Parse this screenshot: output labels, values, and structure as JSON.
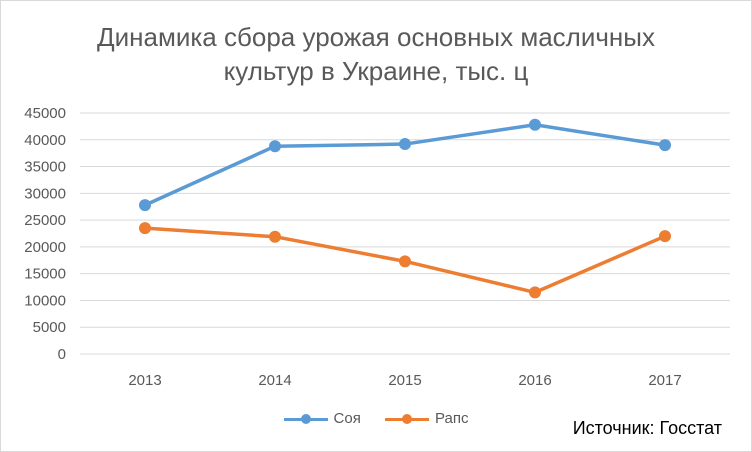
{
  "title_lines": [
    "Динамика сбора урожая основных масличных",
    "культур в Украине, тыс. ц"
  ],
  "source": "Источник: Госстат",
  "chart_data": {
    "type": "line",
    "categories": [
      "2013",
      "2014",
      "2015",
      "2016",
      "2017"
    ],
    "series": [
      {
        "name": "Соя",
        "color": "#5b9bd5",
        "values": [
          27800,
          38800,
          39200,
          42800,
          39000
        ]
      },
      {
        "name": "Рапс",
        "color": "#ed7d31",
        "values": [
          23500,
          21900,
          17300,
          11500,
          22000
        ]
      }
    ],
    "ylim": [
      0,
      45000
    ],
    "yticks": [
      0,
      5000,
      10000,
      15000,
      20000,
      25000,
      30000,
      35000,
      40000,
      45000
    ],
    "grid": true,
    "legend": "bottom"
  }
}
